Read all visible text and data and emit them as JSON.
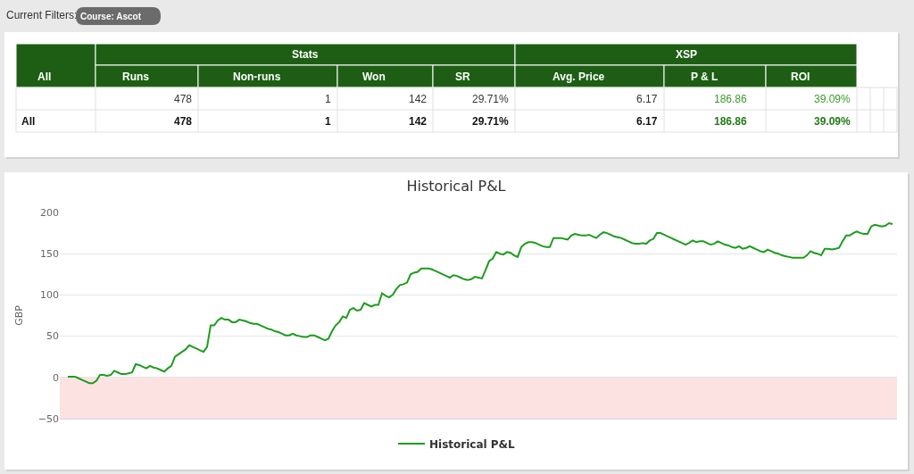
{
  "chart_data": [
    {
      "type": "other",
      "annotations": [
        "Current Filters:",
        "Course: Ascot",
        "All",
        "Stats",
        "XSP",
        "Runs",
        "Non-runs",
        "Won",
        "SR",
        "Avg. Price",
        "P & L",
        "ROI",
        "478",
        "1",
        "142",
        "29.71%",
        "6.17",
        "186.86",
        "39.09%",
        "All",
        "478",
        "1",
        "142",
        "29.71%",
        "6.17",
        "186.86",
        "39.09%"
      ]
    },
    {
      "type": "line",
      "title": "Historical P&L",
      "ylabel": "GBP",
      "categories": [
        null,
        null,
        null,
        null,
        null,
        null,
        null,
        null,
        null,
        null,
        null,
        null,
        null,
        null,
        null,
        null,
        null,
        null,
        null,
        null,
        null,
        null,
        null,
        null,
        null,
        null,
        null,
        null,
        null,
        null,
        null,
        null,
        null,
        null,
        null,
        null,
        null,
        null,
        null,
        null,
        null,
        null,
        null,
        null,
        null,
        null,
        null,
        null,
        null,
        null,
        null,
        null,
        null,
        null,
        null,
        null,
        null,
        null,
        null,
        null,
        null,
        null,
        null,
        null,
        null,
        null,
        null,
        null,
        null,
        null,
        null,
        null,
        null,
        null,
        null,
        null,
        null,
        null,
        null,
        null,
        null,
        null,
        null,
        null,
        null,
        null,
        null,
        null,
        null,
        null,
        null,
        null,
        null,
        null,
        null,
        null,
        null,
        null,
        null,
        null,
        null,
        null,
        null,
        null,
        null,
        null,
        null,
        null,
        null,
        null,
        null,
        null,
        null,
        null,
        null,
        null,
        null,
        null,
        null,
        null,
        null,
        null,
        null,
        null,
        null,
        null,
        null,
        null,
        null,
        null,
        null,
        null,
        null,
        null,
        null,
        null,
        null,
        null,
        null,
        null,
        null,
        null,
        null,
        null,
        null,
        null,
        null,
        null,
        null,
        null,
        null,
        null,
        null,
        null,
        null,
        null,
        null,
        null,
        null,
        null,
        null,
        null,
        null,
        null,
        null,
        null,
        null,
        null,
        null,
        null,
        null,
        null,
        null,
        null,
        null,
        null,
        null,
        null,
        null,
        null,
        null,
        null,
        null,
        null,
        null,
        null,
        null,
        null,
        null,
        null,
        null,
        null,
        null,
        null,
        null,
        null,
        null,
        null,
        null,
        null,
        null,
        null,
        null,
        null,
        null,
        null,
        null,
        null,
        null,
        null,
        null,
        null,
        null,
        null,
        null,
        null,
        null,
        null,
        null,
        null,
        null,
        null,
        null,
        null,
        null,
        null,
        null,
        null,
        null,
        null,
        null,
        null
      ],
      "series": [
        {
          "name": "Historical P&L",
          "color": "#1e9c1e",
          "values": [
            1,
            1,
            1,
            -1,
            -3,
            -5,
            -7,
            -7,
            -4,
            3,
            3,
            2,
            3,
            8,
            6,
            4,
            4,
            5,
            6,
            16,
            15,
            13,
            11,
            14,
            12,
            11,
            9,
            7,
            11,
            14,
            25,
            28,
            31,
            34,
            39,
            37,
            35,
            33,
            31,
            37,
            63,
            63,
            69,
            72,
            70,
            70,
            67,
            67,
            70,
            69,
            68,
            66,
            65,
            65,
            63,
            61,
            59,
            58,
            56,
            55,
            53,
            51,
            51,
            53,
            51,
            50,
            49,
            49,
            51,
            51,
            49,
            47,
            45,
            47,
            56,
            63,
            67,
            74,
            72,
            82,
            84,
            81,
            82,
            90,
            88,
            86,
            88,
            88,
            102,
            99,
            97,
            100,
            107,
            112,
            113,
            115,
            125,
            127,
            128,
            132,
            132,
            132,
            131,
            129,
            127,
            125,
            123,
            121,
            124,
            123,
            121,
            119,
            118,
            119,
            122,
            121,
            120,
            130,
            141,
            144,
            152,
            150,
            149,
            152,
            151,
            148,
            146,
            158,
            162,
            164,
            164,
            163,
            161,
            159,
            158,
            158,
            169,
            169,
            169,
            168,
            167,
            172,
            174,
            173,
            172,
            172,
            173,
            171,
            169,
            173,
            176,
            175,
            173,
            171,
            170,
            169,
            167,
            165,
            163,
            162,
            162,
            163,
            162,
            166,
            168,
            175,
            175,
            173,
            171,
            169,
            167,
            165,
            163,
            161,
            163,
            166,
            164,
            165,
            165,
            163,
            161,
            162,
            165,
            163,
            161,
            160,
            158,
            157,
            159,
            156,
            157,
            159,
            157,
            155,
            153,
            152,
            155,
            153,
            151,
            150,
            148,
            147,
            146,
            145,
            145,
            145,
            145,
            148,
            153,
            151,
            150,
            148,
            156,
            156,
            155,
            156,
            157,
            165,
            172,
            172,
            175,
            177,
            175,
            174,
            174,
            183,
            185,
            184,
            183,
            184,
            187,
            186
          ]
        }
      ],
      "ylim": [
        -50,
        200
      ],
      "yticks": [
        -50,
        0,
        50,
        100,
        150,
        200
      ],
      "grid": "y",
      "legend": "bottom",
      "bands": [
        {
          "axis": "y",
          "from": -50,
          "to": 0,
          "color": "#fde2e2"
        }
      ]
    }
  ]
}
